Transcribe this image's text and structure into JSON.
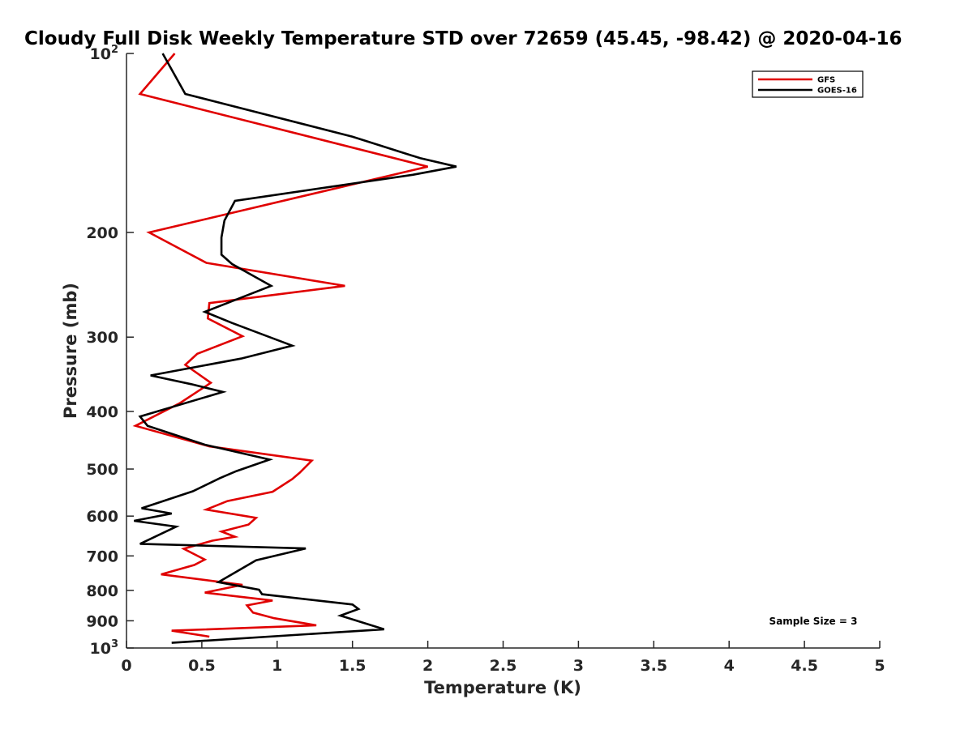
{
  "chart_data": {
    "type": "line",
    "title": "Cloudy Full Disk Weekly Temperature STD over 72659 (45.45, -98.42) @ 2020-04-16",
    "xlabel": "Temperature (K)",
    "ylabel": "Pressure (mb)",
    "xlim": [
      0,
      5
    ],
    "ylim": [
      100,
      1000
    ],
    "y_scale": "log",
    "y_reversed": true,
    "x_ticks": [
      "0",
      "0.5",
      "1",
      "1.5",
      "2",
      "2.5",
      "3",
      "3.5",
      "4",
      "4.5",
      "5"
    ],
    "y_ticks": [
      {
        "value": 100,
        "label": "10",
        "sup": "2"
      },
      {
        "value": 200,
        "label": "200",
        "sup": ""
      },
      {
        "value": 300,
        "label": "300",
        "sup": ""
      },
      {
        "value": 400,
        "label": "400",
        "sup": ""
      },
      {
        "value": 500,
        "label": "500",
        "sup": ""
      },
      {
        "value": 600,
        "label": "600",
        "sup": ""
      },
      {
        "value": 700,
        "label": "700",
        "sup": ""
      },
      {
        "value": 800,
        "label": "800",
        "sup": ""
      },
      {
        "value": 900,
        "label": "900",
        "sup": ""
      },
      {
        "value": 1000,
        "label": "10",
        "sup": "3"
      }
    ],
    "legend_position": "top-right",
    "annotation": "Sample Size = 3",
    "series": [
      {
        "name": "GFS",
        "color": "#e00000",
        "points": [
          [
            0.32,
            100
          ],
          [
            0.09,
            117
          ],
          [
            2.0,
            155
          ],
          [
            0.15,
            200
          ],
          [
            0.53,
            225
          ],
          [
            1.45,
            246
          ],
          [
            0.55,
            263
          ],
          [
            0.54,
            279
          ],
          [
            0.77,
            299
          ],
          [
            0.47,
            320
          ],
          [
            0.39,
            334
          ],
          [
            0.56,
            358
          ],
          [
            0.35,
            388
          ],
          [
            0.06,
            423
          ],
          [
            0.55,
            458
          ],
          [
            1.23,
            484
          ],
          [
            1.15,
            507
          ],
          [
            1.1,
            520
          ],
          [
            0.97,
            546
          ],
          [
            0.67,
            566
          ],
          [
            0.53,
            585
          ],
          [
            0.86,
            604
          ],
          [
            0.81,
            620
          ],
          [
            0.63,
            637
          ],
          [
            0.72,
            650
          ],
          [
            0.57,
            660
          ],
          [
            0.38,
            681
          ],
          [
            0.52,
            710
          ],
          [
            0.45,
            725
          ],
          [
            0.23,
            752
          ],
          [
            0.77,
            783
          ],
          [
            0.52,
            807
          ],
          [
            0.97,
            832
          ],
          [
            0.8,
            848
          ],
          [
            0.84,
            872
          ],
          [
            0.98,
            891
          ],
          [
            1.26,
            916
          ],
          [
            0.3,
            935
          ],
          [
            0.55,
            957
          ]
        ]
      },
      {
        "name": "GOES-16",
        "color": "#000000",
        "points": [
          [
            0.24,
            100
          ],
          [
            0.39,
            117
          ],
          [
            1.5,
            138
          ],
          [
            1.95,
            150
          ],
          [
            2.19,
            155
          ],
          [
            1.9,
            160
          ],
          [
            0.72,
            177
          ],
          [
            0.65,
            191
          ],
          [
            0.63,
            204
          ],
          [
            0.63,
            218
          ],
          [
            0.7,
            226
          ],
          [
            0.96,
            246
          ],
          [
            0.52,
            272
          ],
          [
            0.7,
            284
          ],
          [
            1.1,
            310
          ],
          [
            0.76,
            326
          ],
          [
            0.16,
            348
          ],
          [
            0.43,
            360
          ],
          [
            0.64,
            371
          ],
          [
            0.09,
            408
          ],
          [
            0.14,
            423
          ],
          [
            0.52,
            455
          ],
          [
            0.95,
            482
          ],
          [
            0.73,
            504
          ],
          [
            0.62,
            518
          ],
          [
            0.44,
            545
          ],
          [
            0.1,
            582
          ],
          [
            0.3,
            594
          ],
          [
            0.05,
            611
          ],
          [
            0.33,
            625
          ],
          [
            0.09,
            668
          ],
          [
            1.19,
            680
          ],
          [
            0.86,
            712
          ],
          [
            0.61,
            775
          ],
          [
            0.88,
            798
          ],
          [
            0.9,
            812
          ],
          [
            1.5,
            845
          ],
          [
            1.54,
            860
          ],
          [
            1.42,
            882
          ],
          [
            1.71,
            930
          ],
          [
            0.3,
            980
          ]
        ]
      }
    ]
  }
}
